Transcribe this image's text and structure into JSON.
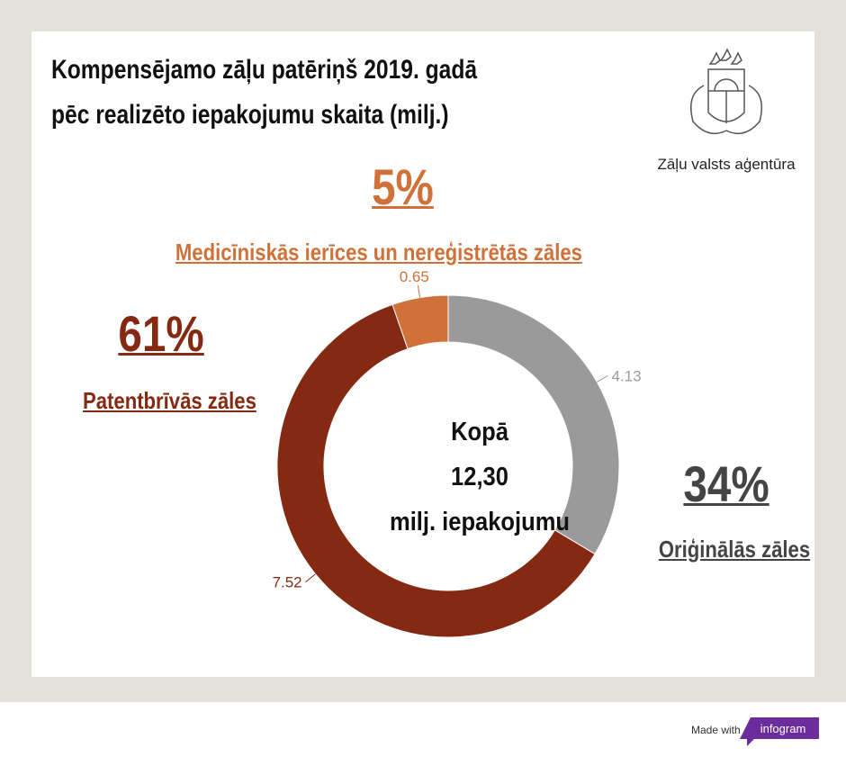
{
  "title": {
    "line1": "Kompensējamo zāļu patēriņš 2019. gadā",
    "line2": "pēc realizēto iepakojumu skaita (milj.)"
  },
  "logo": {
    "text": "Zāļu valsts aģentūra"
  },
  "center": {
    "line1": "Kopā",
    "line2": "12,30",
    "line3": "milj. iepakojumu"
  },
  "categories": [
    {
      "name": "Oriģinālās zāles",
      "percent": "34%",
      "color": "#9a9a9a"
    },
    {
      "name": "Patentbrīvās zāles",
      "percent": "61%",
      "color": "#852912"
    },
    {
      "name": "Medicīniskās ierīces un nereģistrētās zāles",
      "percent": "5%",
      "color": "#cf7138"
    }
  ],
  "chart_data": {
    "type": "pie",
    "donut": true,
    "title": "Kompensējamo zāļu patēriņš 2019. gadā pēc realizēto iepakojumu skaita (milj.)",
    "categories": [
      "Oriģinālās zāles",
      "Patentbrīvās zāles",
      "Medicīniskās ierīces un nereģistrētās zāles"
    ],
    "values": [
      4.13,
      7.52,
      0.65
    ],
    "value_labels": [
      "4.13",
      "7.52",
      "0.65"
    ],
    "colors": [
      "#9a9a9a",
      "#852912",
      "#cf7138"
    ],
    "total": "12,30"
  },
  "footer": {
    "made_with": "Made with",
    "brand": "infogram",
    "brand_color": "#6b2d9b"
  }
}
